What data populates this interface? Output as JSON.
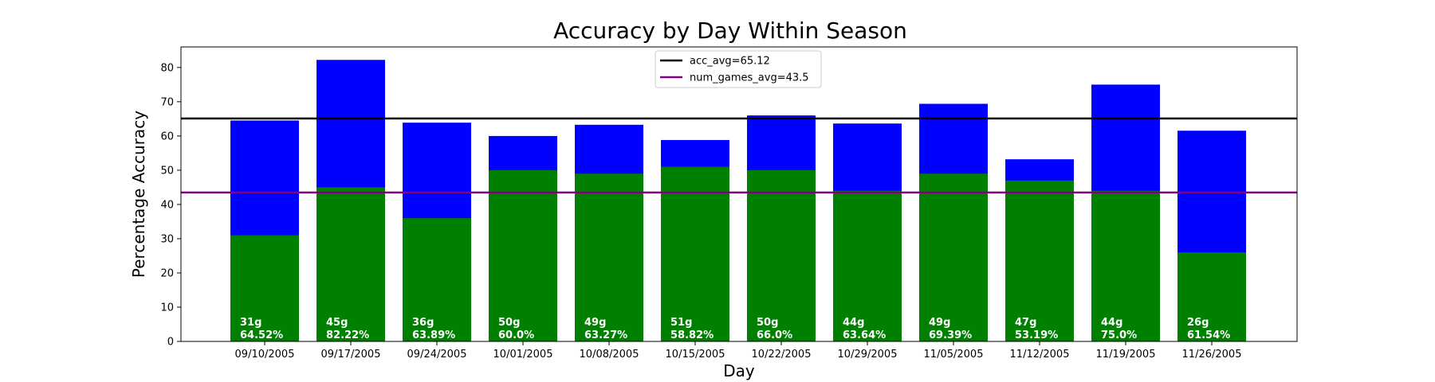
{
  "chart_data": {
    "type": "bar",
    "title": "Accuracy by Day Within Season",
    "xlabel": "Day",
    "ylabel": "Percentage Accuracy",
    "ylim": [
      0,
      86
    ],
    "yticks": [
      0,
      10,
      20,
      30,
      40,
      50,
      60,
      70,
      80
    ],
    "categories": [
      "09/10/2005",
      "09/17/2005",
      "09/24/2005",
      "10/01/2005",
      "10/08/2005",
      "10/15/2005",
      "10/22/2005",
      "10/29/2005",
      "11/05/2005",
      "11/12/2005",
      "11/19/2005",
      "11/26/2005"
    ],
    "series": [
      {
        "values": [
          64.52,
          82.22,
          63.89,
          60.0,
          63.27,
          58.82,
          66.0,
          63.64,
          69.39,
          53.19,
          75.0,
          61.54
        ],
        "color": "#0000ff"
      },
      {
        "values": [
          31,
          45,
          36,
          50,
          49,
          51,
          50,
          44,
          49,
          47,
          44,
          26
        ],
        "color": "#008000"
      }
    ],
    "bar_labels": [
      {
        "games": "31g",
        "acc": "64.52%"
      },
      {
        "games": "45g",
        "acc": "82.22%"
      },
      {
        "games": "36g",
        "acc": "63.89%"
      },
      {
        "games": "50g",
        "acc": "60.0%"
      },
      {
        "games": "49g",
        "acc": "63.27%"
      },
      {
        "games": "51g",
        "acc": "58.82%"
      },
      {
        "games": "50g",
        "acc": "66.0%"
      },
      {
        "games": "44g",
        "acc": "63.64%"
      },
      {
        "games": "49g",
        "acc": "69.39%"
      },
      {
        "games": "47g",
        "acc": "53.19%"
      },
      {
        "games": "44g",
        "acc": "75.0%"
      },
      {
        "games": "26g",
        "acc": "61.54%"
      }
    ],
    "hlines": [
      {
        "name": "acc_avg=65.12",
        "value": 65.12,
        "color": "#000000"
      },
      {
        "name": "num_games_avg=43.5",
        "value": 43.5,
        "color": "#800080"
      }
    ],
    "legend_position": "top-center",
    "grid": false
  }
}
